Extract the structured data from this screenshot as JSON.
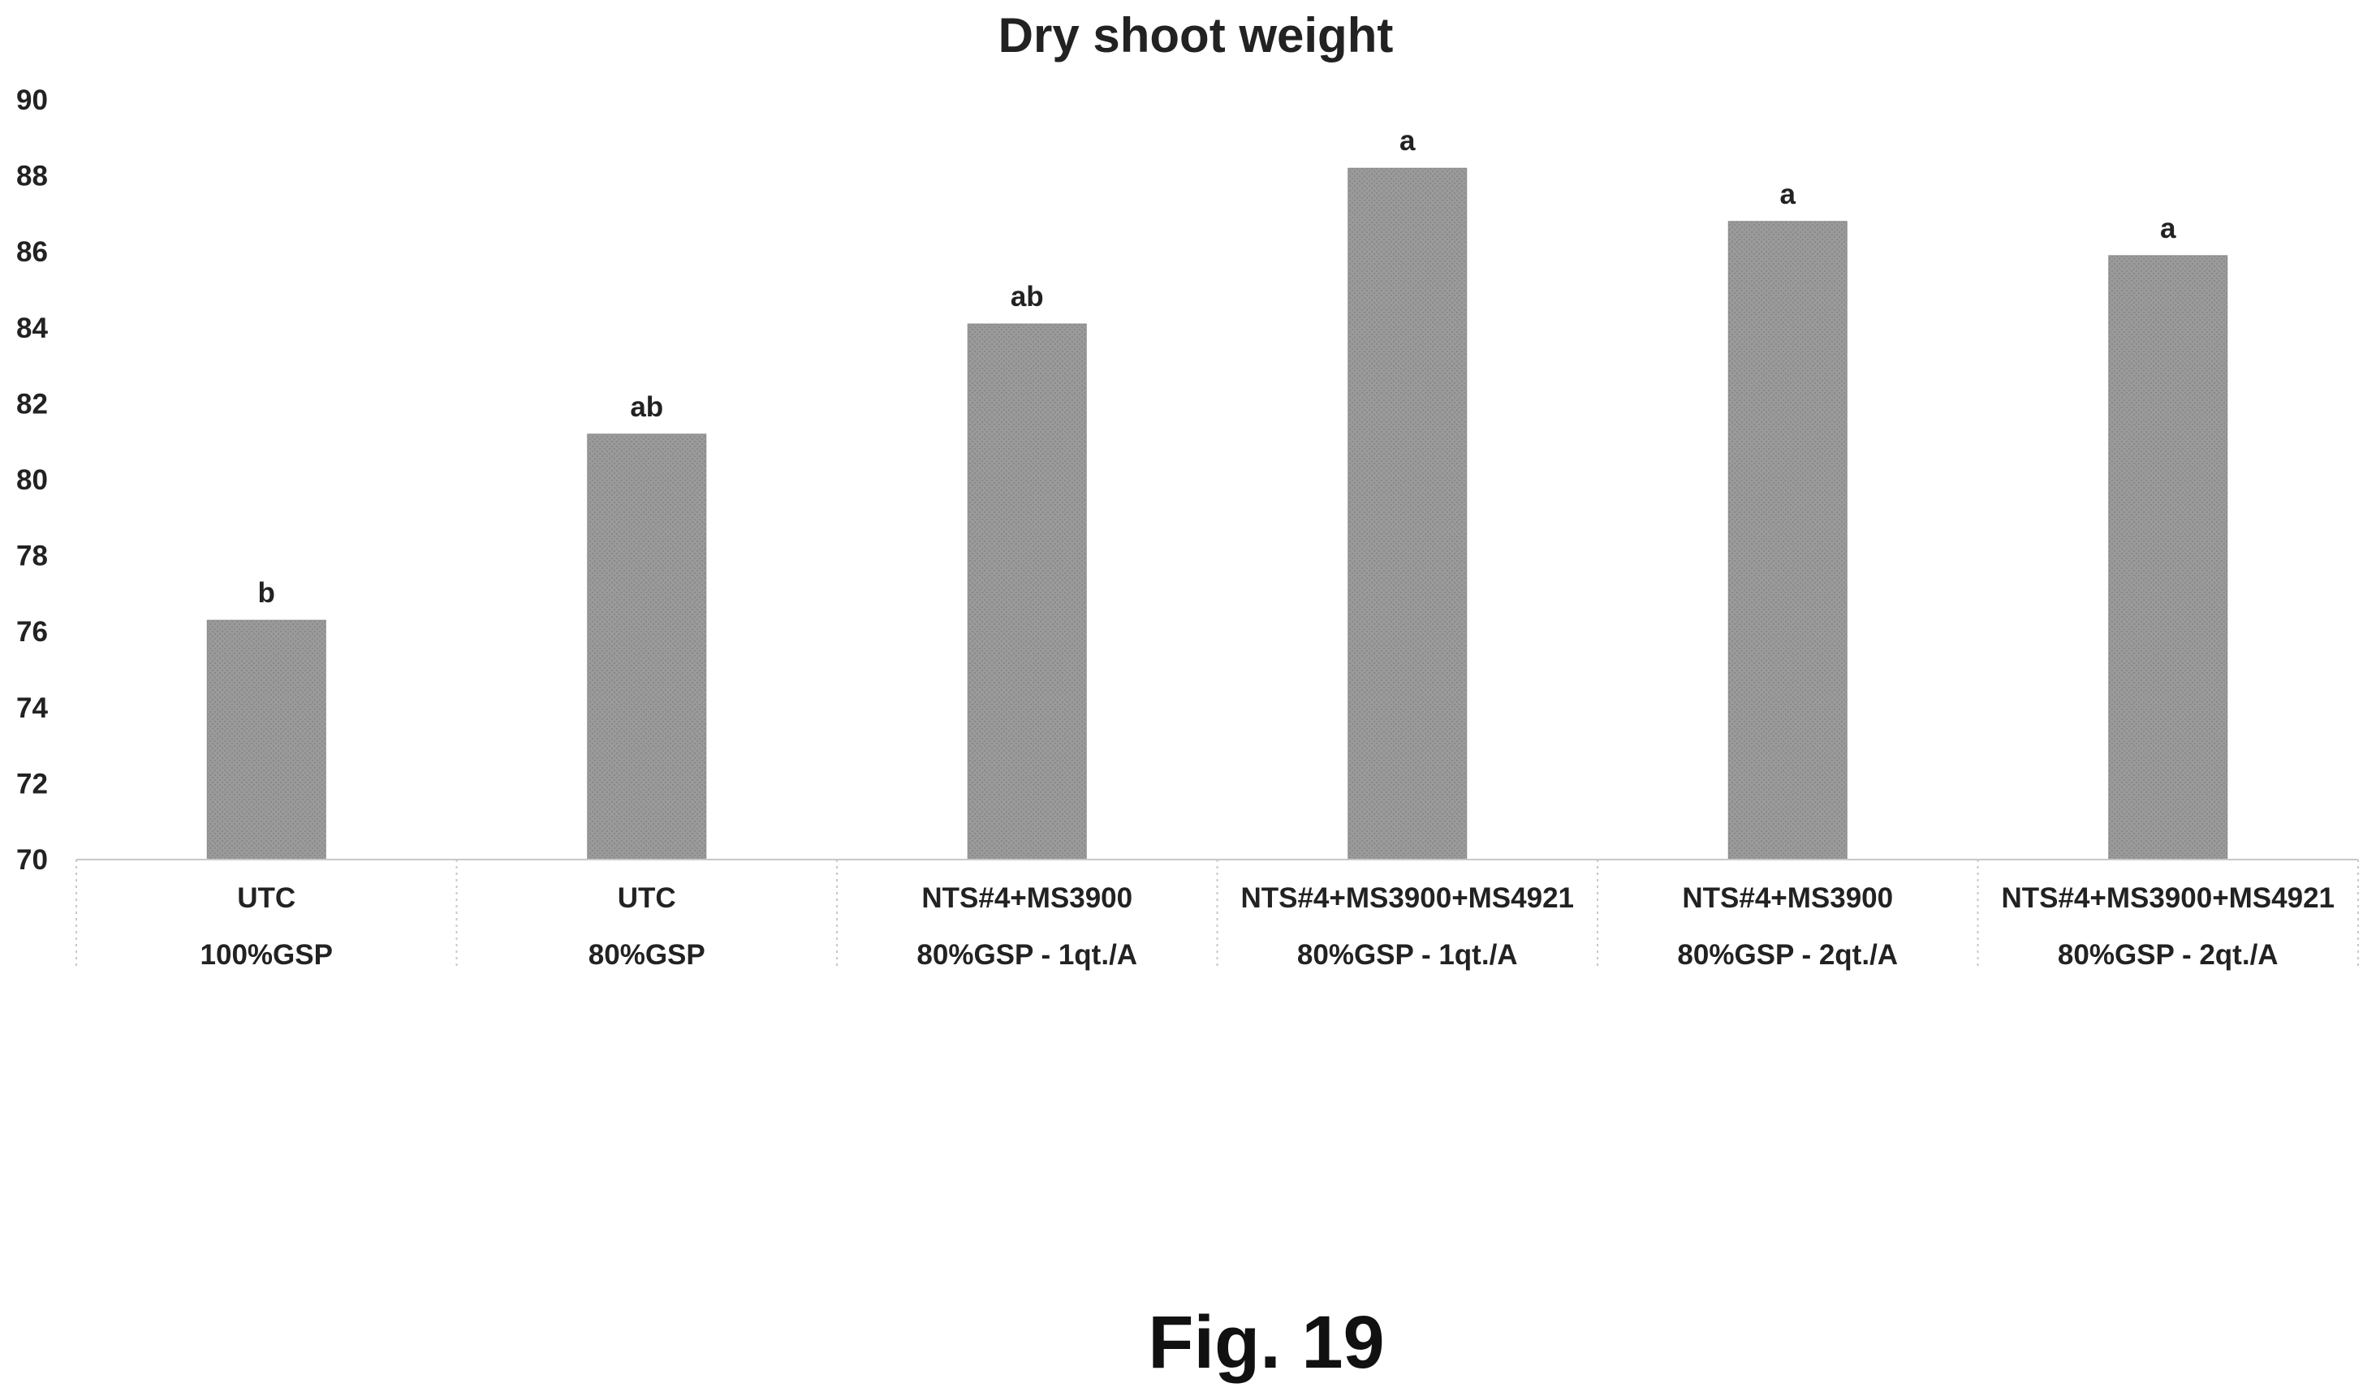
{
  "chart_data": {
    "type": "bar",
    "title": "Dry shoot weight",
    "xlabel": "",
    "ylabel": "",
    "ylim": [
      70,
      90
    ],
    "yticks": [
      "70",
      "72",
      "74",
      "76",
      "78",
      "80",
      "82",
      "84",
      "86",
      "88",
      "90"
    ],
    "categories": [
      [
        "UTC",
        "100%GSP"
      ],
      [
        "UTC",
        "80%GSP"
      ],
      [
        "NTS#4+MS3900",
        "80%GSP - 1qt./A"
      ],
      [
        "NTS#4+MS3900+MS4921",
        "80%GSP - 1qt./A"
      ],
      [
        "NTS#4+MS3900",
        "80%GSP - 2qt./A"
      ],
      [
        "NTS#4+MS3900+MS4921",
        "80%GSP - 2qt./A"
      ]
    ],
    "values": [
      76.3,
      81.2,
      84.1,
      88.2,
      86.8,
      85.9
    ],
    "data_labels": [
      "b",
      "ab",
      "ab",
      "a",
      "a",
      "a"
    ],
    "bar_color": "#999999",
    "grid": false,
    "legend": "none"
  },
  "figure": {
    "caption": "Fig. 19"
  }
}
